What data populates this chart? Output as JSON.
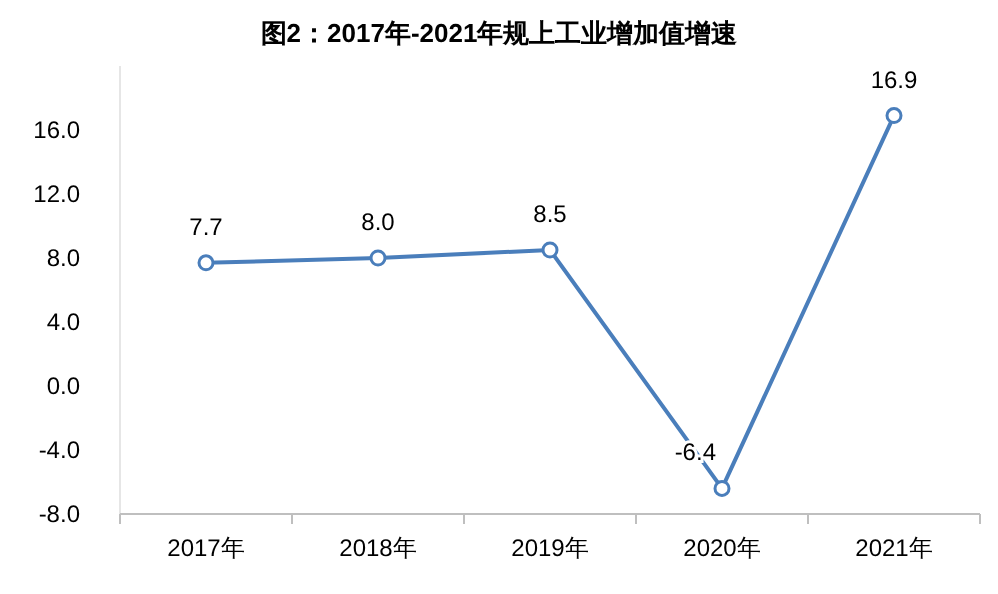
{
  "chart_data": {
    "type": "line",
    "title": "图2：2017年-2021年规上工业增加值增速",
    "categories": [
      "2017年",
      "2018年",
      "2019年",
      "2020年",
      "2021年"
    ],
    "series": [
      {
        "color": "#4a7ebb",
        "values": [
          7.7,
          8.0,
          8.5,
          -6.4,
          16.9
        ],
        "value_labels": [
          "7.7",
          "8.0",
          "8.5",
          "-6.4",
          "16.9"
        ]
      }
    ],
    "ylim": [
      -8,
      20
    ],
    "yticks": [
      {
        "value": -8,
        "label": "-8.0"
      },
      {
        "value": -4,
        "label": "-4.0"
      },
      {
        "value": 0,
        "label": "0.0"
      },
      {
        "value": 4,
        "label": "4.0"
      },
      {
        "value": 8,
        "label": "8.0"
      },
      {
        "value": 12,
        "label": "12.0"
      },
      {
        "value": 16,
        "label": "16.0"
      }
    ],
    "marker": "circle",
    "line_style": "solid",
    "grid": false
  }
}
